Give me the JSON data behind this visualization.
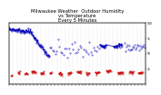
{
  "title": "Milwaukee Weather  Outdoor Humidity\nvs Temperature\nEvery 5 Minutes",
  "title_fontsize": 3.8,
  "background_color": "#ffffff",
  "humidity_color": "#0000bb",
  "temp_color": "#cc0000",
  "grid_color": "#888888",
  "ylim": [
    0,
    100
  ],
  "xlim": [
    0,
    300
  ],
  "right_yticks": [
    25,
    50,
    75,
    100
  ],
  "right_ytick_labels": [
    "25",
    "50",
    "75",
    "100"
  ],
  "marker_size": 0.6,
  "linewidth_seg": 0.5,
  "grid_linewidth": 0.25,
  "title_color": "#000000",
  "spine_linewidth": 0.3
}
